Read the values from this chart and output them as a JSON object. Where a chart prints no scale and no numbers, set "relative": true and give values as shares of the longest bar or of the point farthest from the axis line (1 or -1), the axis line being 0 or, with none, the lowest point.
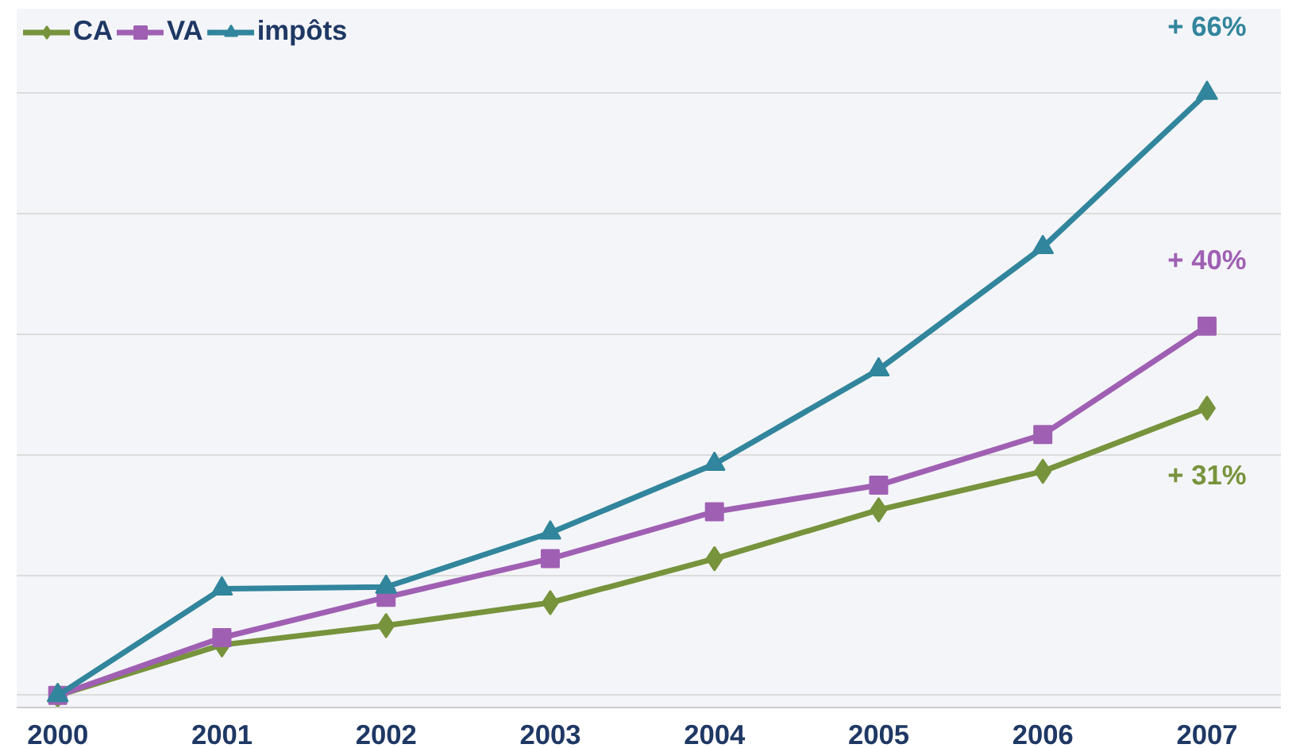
{
  "chart_data": {
    "type": "line",
    "relative": true,
    "categories": [
      "2000",
      "2001",
      "2002",
      "2003",
      "2004",
      "2005",
      "2006",
      "2007"
    ],
    "series": [
      {
        "name": "CA",
        "color": "#77933c",
        "marker": "diamond",
        "values": [
          0,
          0.084,
          0.116,
          0.154,
          0.227,
          0.308,
          0.372,
          0.477
        ]
      },
      {
        "name": "VA",
        "color": "#9f60b3",
        "marker": "square",
        "values": [
          0,
          0.096,
          0.163,
          0.227,
          0.305,
          0.349,
          0.433,
          0.613
        ]
      },
      {
        "name": "impôts",
        "color": "#31859c",
        "marker": "triangle",
        "values": [
          0,
          0.177,
          0.18,
          0.27,
          0.384,
          0.541,
          0.744,
          1
        ]
      }
    ],
    "annotations": [
      {
        "text": "+ 66%",
        "x": "2007",
        "y": 1
      },
      {
        "text": "+ 40%",
        "x": "2007",
        "y": 0.613
      },
      {
        "text": "+ 31%",
        "x": "2007",
        "y": 0.477
      }
    ],
    "grid": "y",
    "legend": "top left",
    "line_style": "solid",
    "tick_labels": "x"
  }
}
